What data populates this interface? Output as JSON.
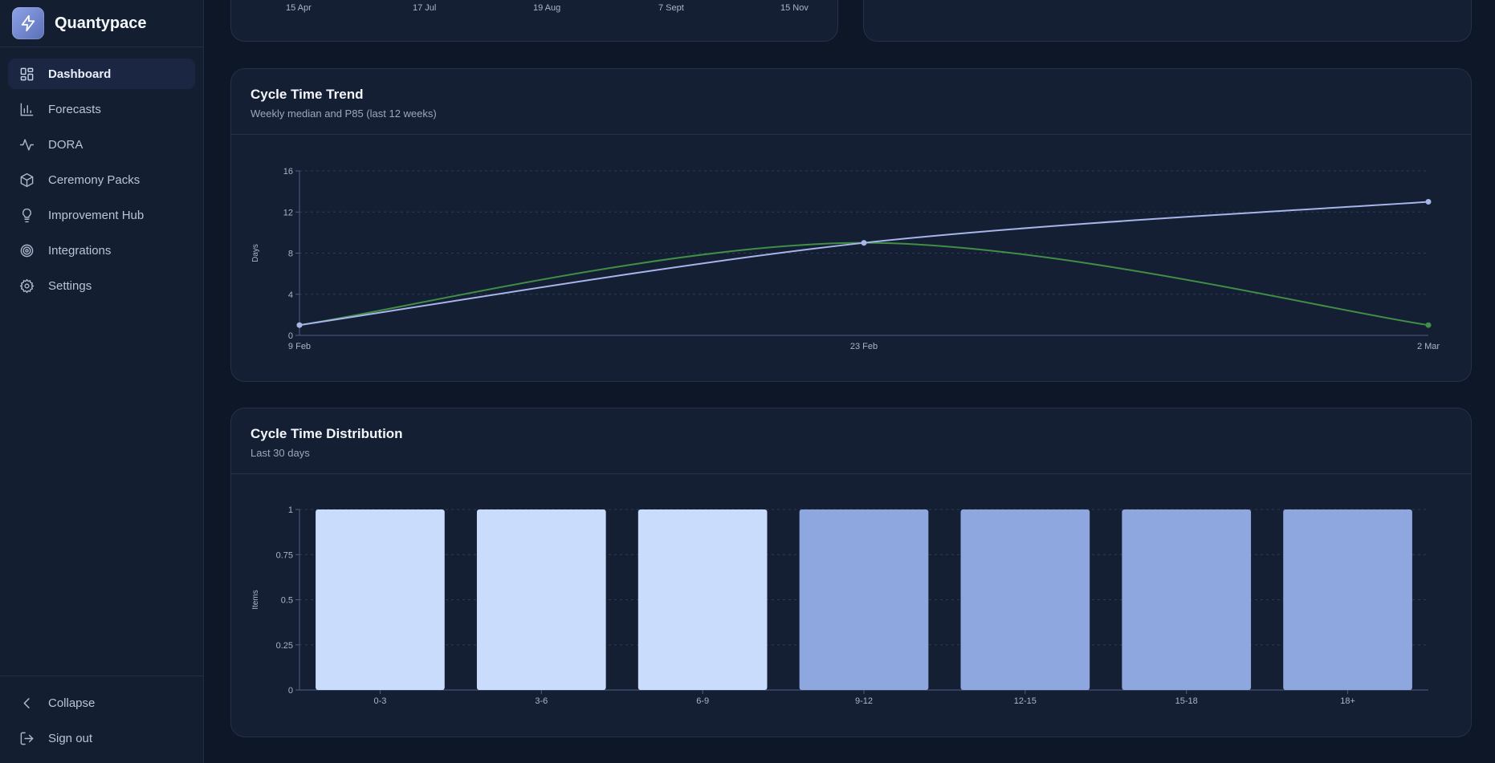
{
  "app": {
    "name": "Quantypace"
  },
  "sidebar": {
    "items": [
      {
        "id": "dashboard",
        "label": "Dashboard",
        "icon": "layout-dashboard-icon",
        "active": true
      },
      {
        "id": "forecasts",
        "label": "Forecasts",
        "icon": "bar-chart-icon",
        "active": false
      },
      {
        "id": "dora",
        "label": "DORA",
        "icon": "activity-icon",
        "active": false
      },
      {
        "id": "ceremony-packs",
        "label": "Ceremony Packs",
        "icon": "package-icon",
        "active": false
      },
      {
        "id": "improvement-hub",
        "label": "Improvement Hub",
        "icon": "lightbulb-icon",
        "active": false
      },
      {
        "id": "integrations",
        "label": "Integrations",
        "icon": "target-icon",
        "active": false
      },
      {
        "id": "settings",
        "label": "Settings",
        "icon": "gear-icon",
        "active": false
      }
    ],
    "collapse_label": "Collapse",
    "signout_label": "Sign out"
  },
  "top_chart": {
    "x_ticks": [
      "15 Apr",
      "17 Jul",
      "19 Aug",
      "7 Sept",
      "15 Nov"
    ]
  },
  "trend": {
    "title": "Cycle Time Trend",
    "subtitle": "Weekly median and P85 (last 12 weeks)"
  },
  "distribution": {
    "title": "Cycle Time Distribution",
    "subtitle": "Last 30 days"
  },
  "chart_data": [
    {
      "type": "line",
      "title": "Cycle Time Trend",
      "ylabel": "Days",
      "x": [
        "9 Feb",
        "23 Feb",
        "2 Mar"
      ],
      "ylim": [
        0,
        16
      ],
      "yticks": [
        0,
        4,
        8,
        12,
        16
      ],
      "grid": true,
      "series": [
        {
          "values": [
            1,
            9,
            13
          ],
          "color": "#a7b5ea"
        },
        {
          "values": [
            1,
            9,
            1
          ],
          "color": "#3f8f46"
        }
      ]
    },
    {
      "type": "bar",
      "title": "Cycle Time Distribution",
      "ylabel": "Items",
      "categories": [
        "0-3",
        "3-6",
        "6-9",
        "9-12",
        "12-15",
        "15-18",
        "18+"
      ],
      "values": [
        1,
        1,
        1,
        1,
        1,
        1,
        1
      ],
      "colors": [
        "#cadcfb",
        "#cadcfb",
        "#cadcfb",
        "#8ea7de",
        "#8ea7de",
        "#8ea7de",
        "#8ea7de"
      ],
      "ylim": [
        0,
        1
      ],
      "yticks": [
        "0",
        "0.25",
        "0.5",
        "0.75",
        "1"
      ],
      "grid": true
    }
  ]
}
